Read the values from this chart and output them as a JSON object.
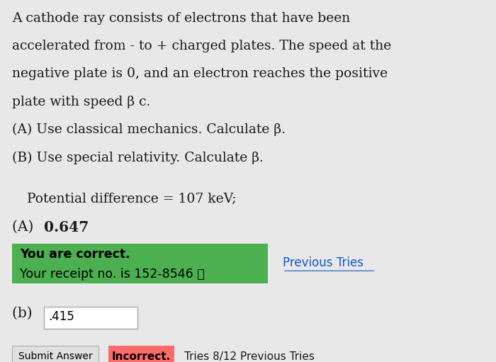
{
  "bg_color": "#e8e8e8",
  "text_color": "#1a1a1a",
  "line1": "A cathode ray consists of electrons that have been",
  "line2": "accelerated from ‐ to + charged plates. The speed at the",
  "line3": "negative plate is 0, and an electron reaches the positive",
  "line4": "plate with speed β c.",
  "line5": "(A) Use classical mechanics. Calculate β.",
  "line6": "(B) Use special relativity. Calculate β.",
  "potential_line": "Potential difference = 107 keV;",
  "answer_a_label": "(A) ",
  "answer_a_value": "0.647",
  "green_box_line1": "You are correct.",
  "green_box_line2": "Your receipt no. is 152-8546 ⓘ",
  "green_color": "#4caf50",
  "previous_tries_text": "Previous Tries",
  "part_b_label": "(b) ",
  "input_value": ".415",
  "submit_btn_text": "Submit Answer",
  "incorrect_text": "Incorrect.",
  "incorrect_color": "#ff6b6b",
  "tries_text": "Tries 8/12 ",
  "prev_tries_b": "Previous Tries",
  "input_border": "#aaaaaa",
  "btn_border": "#aaaaaa",
  "link_color": "#1155cc"
}
